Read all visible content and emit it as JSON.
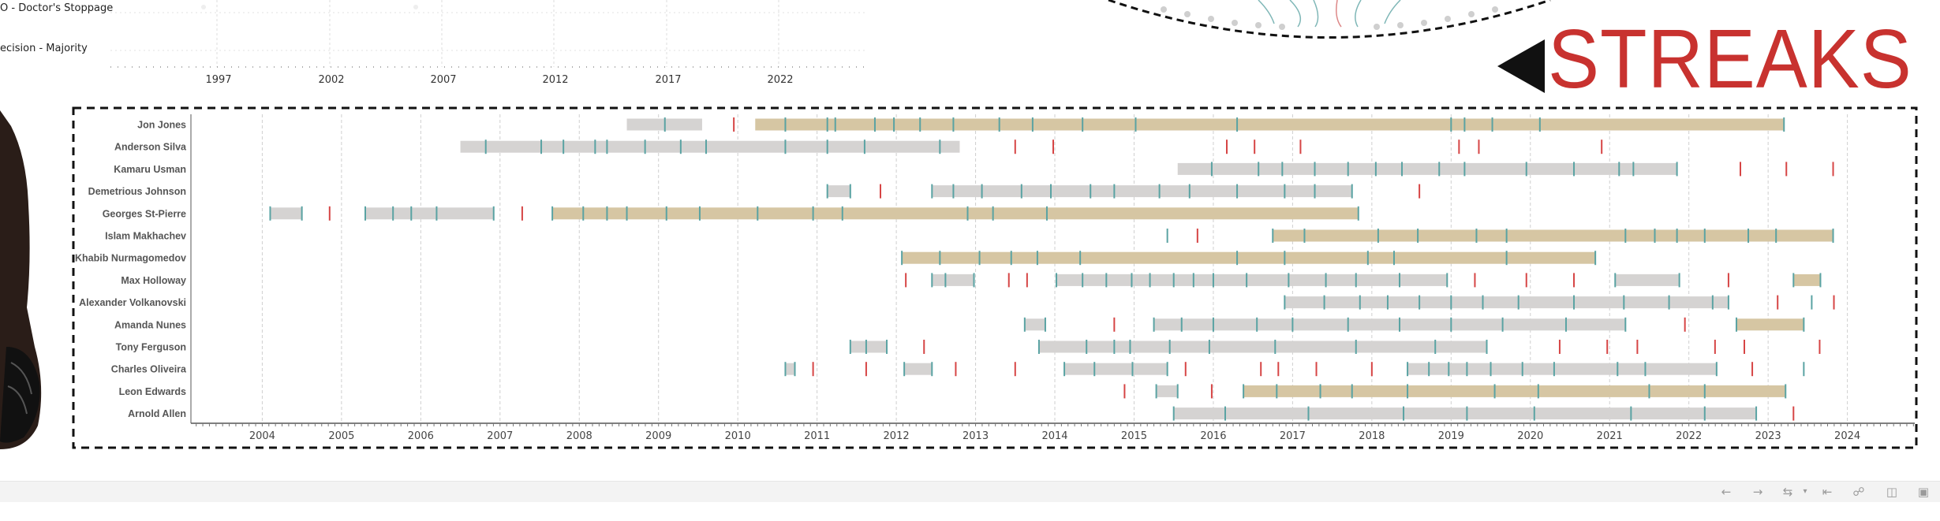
{
  "top_legend": {
    "items": [
      "O - Doctor's Stoppage",
      "ecision - Majority"
    ],
    "year_ticks": [
      "1997",
      "2002",
      "2007",
      "2012",
      "2017",
      "2022"
    ]
  },
  "title": "STREAKS",
  "colors": {
    "win_streak_fill": "#d6c6a3",
    "other_streak_fill": "#d5d3d2",
    "win_tick": "#5aa3a3",
    "loss_tick": "#d64545",
    "title": "#c8322f",
    "frame": "#111111"
  },
  "toolbar": {
    "icons": [
      "undo-icon",
      "redo-icon",
      "revert-icon",
      "revert-all-icon",
      "share-icon",
      "download-icon",
      "fullscreen-icon"
    ]
  },
  "chart_data": {
    "type": "timeline",
    "xlim": [
      2003.1,
      2024.85
    ],
    "x_ticks": [
      "2004",
      "2005",
      "2006",
      "2007",
      "2008",
      "2009",
      "2010",
      "2011",
      "2012",
      "2013",
      "2014",
      "2015",
      "2016",
      "2017",
      "2018",
      "2019",
      "2020",
      "2021",
      "2022",
      "2023",
      "2024"
    ],
    "grid": "vertical dashed",
    "fighters": [
      {
        "name": "Jon Jones",
        "segments": [
          {
            "start": 2008.6,
            "end": 2009.55,
            "type": "other"
          },
          {
            "start": 2010.22,
            "end": 2023.2,
            "type": "win"
          }
        ],
        "wins": [
          2009.08,
          2010.6,
          2011.13,
          2011.23,
          2011.73,
          2011.97,
          2012.3,
          2012.72,
          2013.3,
          2013.72,
          2014.35,
          2015.02,
          2016.3,
          2019.0,
          2019.17,
          2019.52,
          2020.12,
          2023.2
        ],
        "losses": [
          2009.95
        ]
      },
      {
        "name": "Anderson Silva",
        "segments": [
          {
            "start": 2006.5,
            "end": 2012.8,
            "type": "other"
          }
        ],
        "wins": [
          2006.82,
          2007.52,
          2007.8,
          2008.2,
          2008.35,
          2008.83,
          2009.28,
          2009.6,
          2010.6,
          2011.13,
          2011.6,
          2012.55
        ],
        "losses": [
          2013.5,
          2013.98,
          2016.17,
          2016.52,
          2017.1,
          2019.1,
          2019.35,
          2020.9
        ]
      },
      {
        "name": "Kamaru Usman",
        "segments": [
          {
            "start": 2015.55,
            "end": 2021.85,
            "type": "other"
          }
        ],
        "wins": [
          2015.98,
          2016.57,
          2016.87,
          2017.28,
          2017.7,
          2018.05,
          2018.38,
          2018.85,
          2019.17,
          2019.95,
          2020.55,
          2021.12,
          2021.3,
          2021.85
        ],
        "losses": [
          2022.65,
          2023.23,
          2023.82
        ]
      },
      {
        "name": "Demetrious Johnson",
        "segments": [
          {
            "start": 2011.13,
            "end": 2011.42,
            "type": "other"
          },
          {
            "start": 2012.45,
            "end": 2017.75,
            "type": "other"
          }
        ],
        "wins": [
          2011.13,
          2011.42,
          2012.45,
          2012.72,
          2013.08,
          2013.58,
          2013.95,
          2014.45,
          2014.75,
          2015.32,
          2015.7,
          2016.3,
          2016.9,
          2017.28,
          2017.75
        ],
        "losses": [
          2011.8,
          2018.6
        ]
      },
      {
        "name": "Georges St-Pierre",
        "segments": [
          {
            "start": 2004.1,
            "end": 2004.5,
            "type": "other"
          },
          {
            "start": 2005.3,
            "end": 2006.92,
            "type": "other"
          },
          {
            "start": 2007.66,
            "end": 2017.83,
            "type": "win"
          }
        ],
        "wins": [
          2004.1,
          2004.5,
          2005.3,
          2005.65,
          2005.88,
          2006.2,
          2006.92,
          2007.66,
          2008.05,
          2008.35,
          2008.6,
          2009.1,
          2009.52,
          2010.25,
          2010.95,
          2011.32,
          2012.9,
          2013.22,
          2013.9,
          2017.83
        ],
        "losses": [
          2004.85,
          2007.28
        ]
      },
      {
        "name": "Islam Makhachev",
        "segments": [
          {
            "start": 2016.75,
            "end": 2023.82,
            "type": "win"
          }
        ],
        "wins": [
          2015.42,
          2016.75,
          2017.15,
          2018.08,
          2018.58,
          2019.32,
          2019.7,
          2021.2,
          2021.57,
          2021.85,
          2022.2,
          2022.75,
          2023.1,
          2023.82
        ],
        "losses": [
          2015.8
        ]
      },
      {
        "name": "Khabib Nurmagomedov",
        "segments": [
          {
            "start": 2012.07,
            "end": 2020.82,
            "type": "win"
          }
        ],
        "wins": [
          2012.07,
          2012.55,
          2013.05,
          2013.45,
          2013.78,
          2014.32,
          2016.3,
          2016.9,
          2017.95,
          2018.28,
          2019.7,
          2020.82
        ],
        "losses": []
      },
      {
        "name": "Max Holloway",
        "segments": [
          {
            "start": 2012.45,
            "end": 2012.98,
            "type": "other"
          },
          {
            "start": 2014.02,
            "end": 2018.95,
            "type": "other"
          },
          {
            "start": 2021.07,
            "end": 2021.88,
            "type": "other"
          },
          {
            "start": 2023.32,
            "end": 2023.66,
            "type": "win"
          }
        ],
        "wins": [
          2012.45,
          2012.62,
          2012.98,
          2014.02,
          2014.35,
          2014.65,
          2014.97,
          2015.2,
          2015.5,
          2015.75,
          2016.0,
          2016.42,
          2016.95,
          2017.42,
          2017.8,
          2018.35,
          2018.95,
          2021.07,
          2021.88,
          2023.32,
          2023.66
        ],
        "losses": [
          2012.12,
          2013.42,
          2013.65,
          2019.3,
          2019.95,
          2020.55,
          2022.5
        ]
      },
      {
        "name": "Alexander Volkanovski",
        "segments": [
          {
            "start": 2016.9,
            "end": 2022.5,
            "type": "other"
          }
        ],
        "wins": [
          2016.9,
          2017.4,
          2017.85,
          2018.2,
          2018.6,
          2019.0,
          2019.4,
          2019.85,
          2020.55,
          2021.18,
          2021.75,
          2022.3,
          2022.5,
          2023.55
        ],
        "losses": [
          2023.12,
          2023.83
        ]
      },
      {
        "name": "Amanda Nunes",
        "segments": [
          {
            "start": 2013.62,
            "end": 2013.88,
            "type": "other"
          },
          {
            "start": 2015.25,
            "end": 2021.2,
            "type": "other"
          },
          {
            "start": 2022.6,
            "end": 2023.45,
            "type": "win"
          }
        ],
        "wins": [
          2013.62,
          2013.88,
          2015.25,
          2015.6,
          2016.0,
          2016.55,
          2017.0,
          2017.7,
          2018.35,
          2019.0,
          2019.65,
          2020.45,
          2021.2,
          2022.6,
          2023.45
        ],
        "losses": [
          2014.75,
          2021.95
        ]
      },
      {
        "name": "Tony Ferguson",
        "segments": [
          {
            "start": 2011.42,
            "end": 2011.88,
            "type": "other"
          },
          {
            "start": 2013.8,
            "end": 2019.45,
            "type": "other"
          }
        ],
        "wins": [
          2011.42,
          2011.62,
          2011.88,
          2013.8,
          2014.4,
          2014.75,
          2014.95,
          2015.45,
          2015.95,
          2016.78,
          2017.8,
          2018.8,
          2019.45
        ],
        "losses": [
          2012.35,
          2020.37,
          2020.97,
          2021.35,
          2022.33,
          2022.7,
          2023.65
        ]
      },
      {
        "name": "Charles Oliveira",
        "segments": [
          {
            "start": 2010.6,
            "end": 2010.72,
            "type": "other"
          },
          {
            "start": 2012.1,
            "end": 2012.45,
            "type": "other"
          },
          {
            "start": 2014.12,
            "end": 2015.42,
            "type": "other"
          },
          {
            "start": 2018.45,
            "end": 2022.35,
            "type": "other"
          }
        ],
        "wins": [
          2010.6,
          2010.72,
          2012.1,
          2012.45,
          2014.12,
          2014.5,
          2014.98,
          2015.42,
          2018.45,
          2018.72,
          2018.97,
          2019.2,
          2019.5,
          2019.9,
          2020.3,
          2021.1,
          2021.45,
          2022.35,
          2023.45
        ],
        "losses": [
          2010.95,
          2011.62,
          2012.75,
          2013.5,
          2015.65,
          2016.6,
          2016.82,
          2017.3,
          2018.0,
          2022.8
        ]
      },
      {
        "name": "Leon Edwards",
        "segments": [
          {
            "start": 2015.28,
            "end": 2015.55,
            "type": "other"
          },
          {
            "start": 2016.38,
            "end": 2023.22,
            "type": "win"
          }
        ],
        "wins": [
          2015.28,
          2015.55,
          2016.38,
          2016.8,
          2017.35,
          2017.75,
          2018.45,
          2019.55,
          2020.1,
          2021.5,
          2022.2,
          2023.22
        ],
        "losses": [
          2014.88,
          2015.98
        ]
      },
      {
        "name": "Arnold Allen",
        "segments": [
          {
            "start": 2015.5,
            "end": 2022.85,
            "type": "other"
          }
        ],
        "wins": [
          2015.5,
          2016.15,
          2017.2,
          2018.4,
          2019.2,
          2020.05,
          2021.27,
          2022.2,
          2022.85
        ],
        "losses": [
          2023.32
        ]
      }
    ]
  }
}
